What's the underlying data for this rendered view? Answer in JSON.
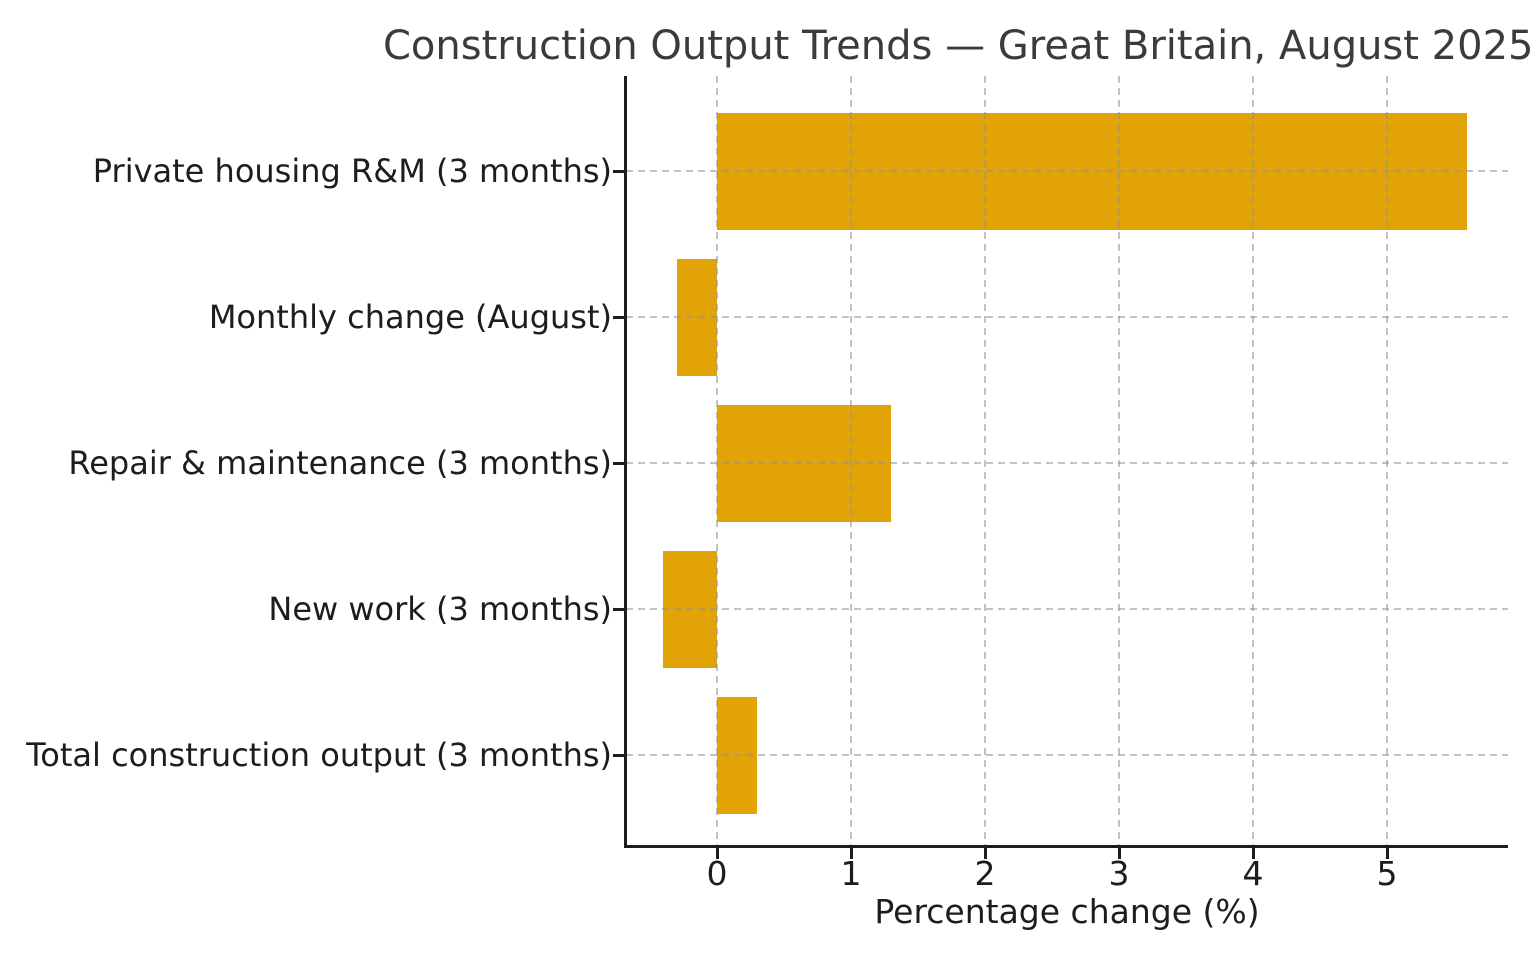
{
  "chart_data": {
    "type": "bar",
    "orientation": "horizontal",
    "title": "Construction Output Trends — Great Britain, August 2025",
    "title_clipped_at_right_edge": true,
    "xlabel": "Percentage change (%)",
    "categories": [
      "Private housing R&M (3 months)",
      "Monthly change (August)",
      "Repair & maintenance (3 months)",
      "New work (3 months)",
      "Total construction output (3 months)"
    ],
    "values": [
      5.6,
      -0.3,
      1.3,
      -0.4,
      0.3
    ],
    "x_ticks": [
      0,
      1,
      2,
      3,
      4,
      5
    ],
    "xlim": [
      -0.7,
      5.9
    ],
    "grid": {
      "style": "dashed",
      "axes": "both",
      "drawn_over_bars": true
    },
    "legend": null,
    "bar_color": "#E2A306",
    "axis_color": "#1d1d1d",
    "grid_color": "#c9c9c9",
    "title_color": "#3b3b3b",
    "text_color": "#1d1d1d"
  }
}
